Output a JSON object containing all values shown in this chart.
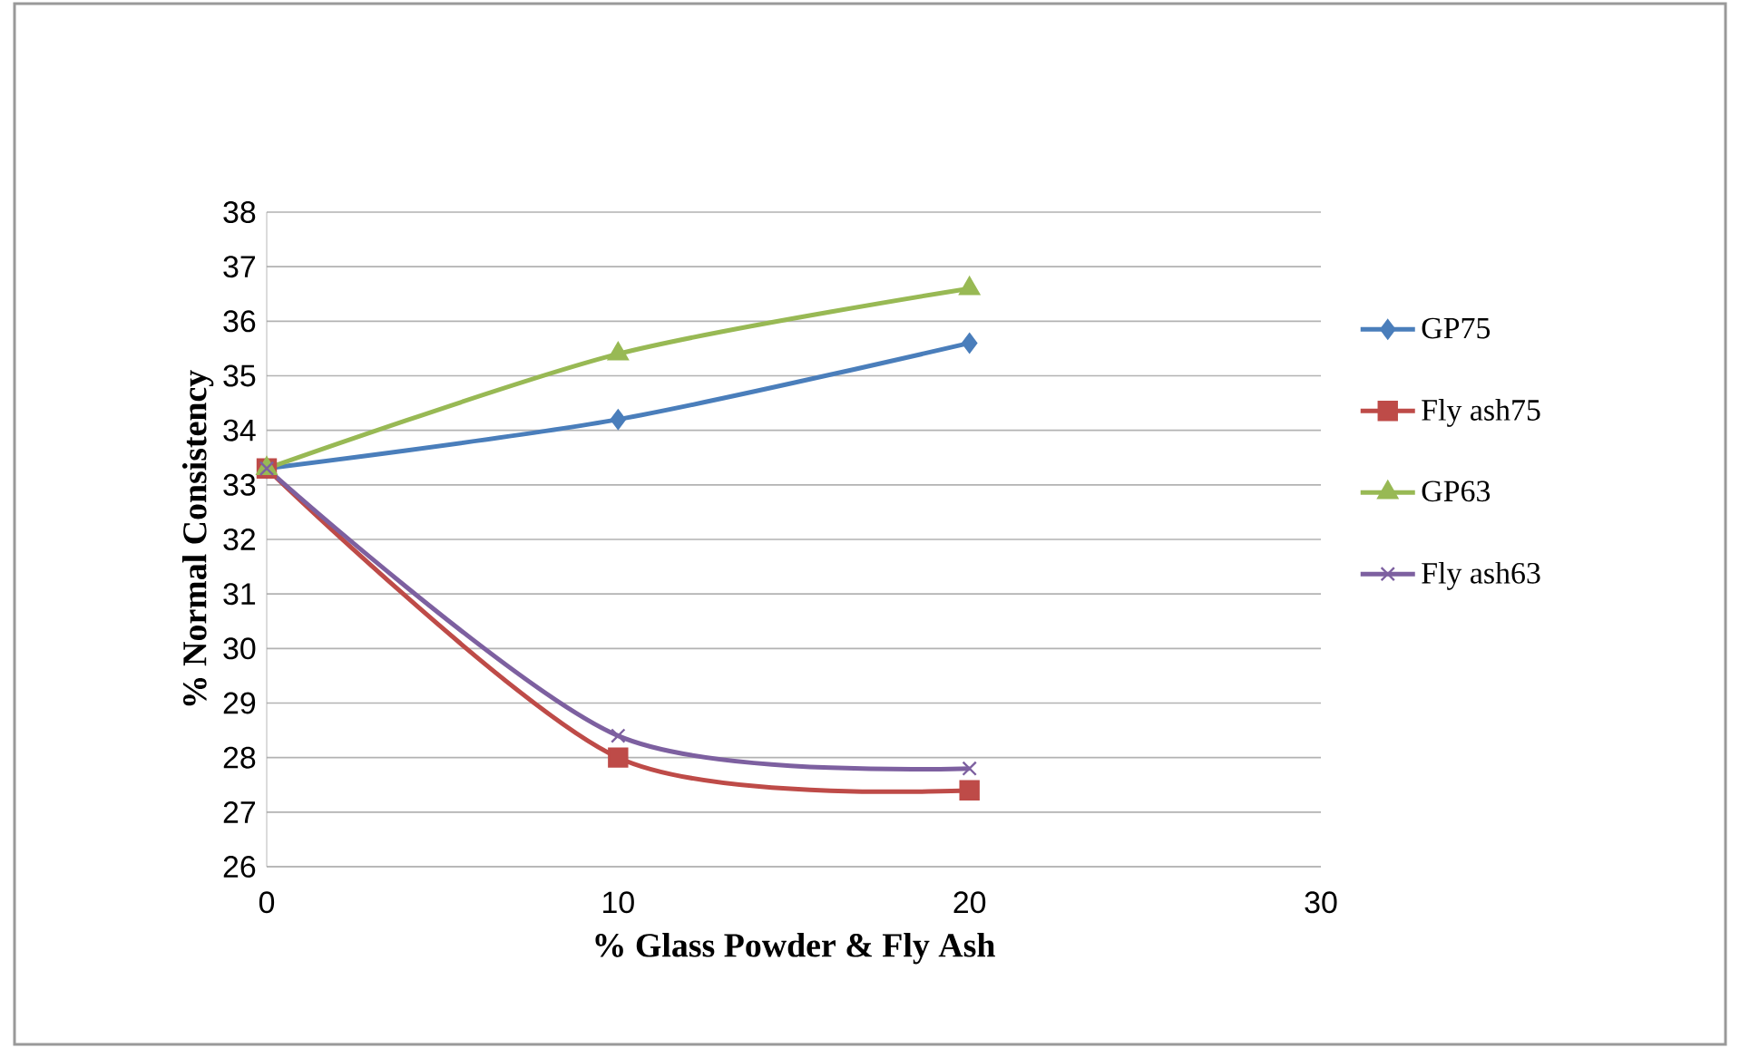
{
  "chart_data": {
    "type": "line",
    "xlabel": "% Glass Powder & Fly Ash",
    "ylabel": "% Normal Consistency",
    "x": [
      0,
      10,
      20
    ],
    "xlim": [
      0,
      30
    ],
    "xticks": [
      0,
      10,
      20,
      30
    ],
    "ylim": [
      26,
      38
    ],
    "yticks": [
      26,
      27,
      28,
      29,
      30,
      31,
      32,
      33,
      34,
      35,
      36,
      37,
      38
    ],
    "grid": "y",
    "legend": "right",
    "line_style": "solid",
    "series": [
      {
        "name": "GP75",
        "color": "#4a7ebb",
        "marker": "diamond",
        "values": [
          33.3,
          34.2,
          35.6
        ]
      },
      {
        "name": "Fly ash75",
        "color": "#be4b48",
        "marker": "square",
        "values": [
          33.3,
          28.0,
          27.4
        ]
      },
      {
        "name": "GP63",
        "color": "#98b954",
        "marker": "triangle",
        "values": [
          33.3,
          35.4,
          36.6
        ]
      },
      {
        "name": "Fly ash63",
        "color": "#7d60a0",
        "marker": "cross",
        "values": [
          33.3,
          28.4,
          27.8
        ]
      }
    ]
  }
}
